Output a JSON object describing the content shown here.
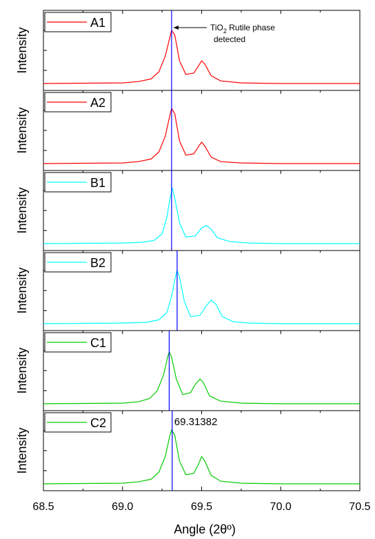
{
  "chart_data": {
    "type": "line",
    "xlabel": "Angle (2θº)",
    "ylabel": "Intensity",
    "xlim": [
      68.5,
      70.5
    ],
    "x_ticks": [
      "68.5",
      "69.0",
      "69.5",
      "70.0",
      "70.5"
    ],
    "grid": false,
    "panels": [
      {
        "name": "A1",
        "color": "#ff0000",
        "vline": 69.31,
        "x": [
          68.5,
          69.0,
          69.1,
          69.18,
          69.23,
          69.27,
          69.3,
          69.31,
          69.33,
          69.36,
          69.4,
          69.45,
          69.48,
          69.5,
          69.52,
          69.56,
          69.62,
          69.75,
          70.0,
          70.5
        ],
        "y": [
          0.0,
          0.01,
          0.03,
          0.07,
          0.18,
          0.42,
          0.72,
          0.82,
          0.75,
          0.35,
          0.14,
          0.16,
          0.27,
          0.35,
          0.3,
          0.12,
          0.04,
          0.01,
          0.0,
          0.0
        ]
      },
      {
        "name": "A2",
        "color": "#ff0000",
        "vline": 69.31,
        "x": [
          68.5,
          69.0,
          69.1,
          69.18,
          69.23,
          69.27,
          69.3,
          69.31,
          69.33,
          69.36,
          69.4,
          69.45,
          69.48,
          69.5,
          69.52,
          69.56,
          69.62,
          69.75,
          70.0,
          70.5
        ],
        "y": [
          0.0,
          0.01,
          0.03,
          0.07,
          0.18,
          0.42,
          0.75,
          0.85,
          0.77,
          0.35,
          0.13,
          0.15,
          0.26,
          0.33,
          0.27,
          0.1,
          0.03,
          0.01,
          0.0,
          0.0
        ]
      },
      {
        "name": "B1",
        "color": "#00ffff",
        "vline": 69.31,
        "x": [
          68.5,
          69.0,
          69.12,
          69.2,
          69.25,
          69.28,
          69.3,
          69.315,
          69.33,
          69.36,
          69.4,
          69.46,
          69.5,
          69.53,
          69.56,
          69.6,
          69.68,
          69.8,
          70.0,
          70.5
        ],
        "y": [
          0.0,
          0.01,
          0.02,
          0.05,
          0.15,
          0.4,
          0.7,
          0.86,
          0.7,
          0.32,
          0.1,
          0.12,
          0.24,
          0.28,
          0.22,
          0.09,
          0.03,
          0.01,
          0.0,
          0.0
        ]
      },
      {
        "name": "B2",
        "color": "#00ffff",
        "vline": 69.345,
        "x": [
          68.5,
          69.0,
          69.15,
          69.23,
          69.28,
          69.31,
          69.33,
          69.345,
          69.36,
          69.39,
          69.43,
          69.49,
          69.53,
          69.56,
          69.59,
          69.63,
          69.7,
          69.8,
          70.0,
          70.5
        ],
        "y": [
          0.0,
          0.01,
          0.02,
          0.06,
          0.17,
          0.42,
          0.68,
          0.82,
          0.72,
          0.35,
          0.11,
          0.13,
          0.28,
          0.36,
          0.3,
          0.11,
          0.03,
          0.01,
          0.0,
          0.0
        ]
      },
      {
        "name": "C1",
        "color": "#00cc00",
        "vline": 69.295,
        "x": [
          68.5,
          69.0,
          69.1,
          69.17,
          69.22,
          69.26,
          69.285,
          69.295,
          69.31,
          69.34,
          69.38,
          69.43,
          69.46,
          69.49,
          69.51,
          69.55,
          69.62,
          69.75,
          70.0,
          70.5
        ],
        "y": [
          0.0,
          0.01,
          0.03,
          0.08,
          0.2,
          0.45,
          0.72,
          0.8,
          0.72,
          0.38,
          0.14,
          0.17,
          0.3,
          0.38,
          0.33,
          0.12,
          0.04,
          0.01,
          0.0,
          0.0
        ]
      },
      {
        "name": "C2",
        "color": "#00cc00",
        "vline": 69.31382,
        "x": [
          68.5,
          69.0,
          69.1,
          69.18,
          69.23,
          69.27,
          69.3,
          69.31,
          69.33,
          69.36,
          69.4,
          69.45,
          69.48,
          69.5,
          69.52,
          69.56,
          69.62,
          69.75,
          70.0,
          70.5
        ],
        "y": [
          0.0,
          0.01,
          0.03,
          0.07,
          0.18,
          0.42,
          0.75,
          0.83,
          0.75,
          0.35,
          0.14,
          0.16,
          0.3,
          0.42,
          0.35,
          0.13,
          0.04,
          0.01,
          0.0,
          0.0
        ],
        "peak_label": "69.31382"
      }
    ],
    "vline_color": "#0000ff",
    "annotation": {
      "main": "TiO",
      "sub": "2",
      "tail": " Rutile phase",
      "line2": "detected"
    }
  }
}
